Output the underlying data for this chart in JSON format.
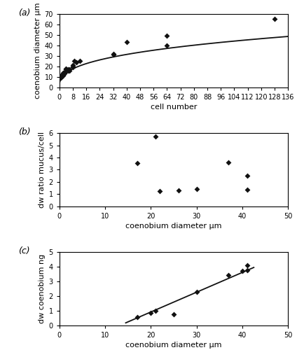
{
  "panel_a": {
    "scatter_x": [
      1,
      1,
      1,
      2,
      2,
      2,
      2,
      3,
      3,
      4,
      4,
      4,
      4,
      5,
      5,
      6,
      6,
      8,
      8,
      8,
      9,
      10,
      12,
      32,
      32,
      40,
      64,
      64,
      128
    ],
    "scatter_y": [
      9,
      10,
      11,
      11,
      12,
      13,
      14,
      13,
      14,
      15,
      16,
      17,
      18,
      16,
      17,
      16,
      17,
      19,
      20,
      21,
      25,
      24,
      25,
      31,
      32,
      43,
      40,
      49,
      65
    ],
    "curve_a": 8.5,
    "curve_b": 0.355,
    "xlabel": "cell number",
    "ylabel": "coenobium diameter μm",
    "xlim": [
      0,
      136
    ],
    "ylim": [
      0,
      70
    ],
    "xticks": [
      0,
      8,
      16,
      24,
      32,
      40,
      48,
      56,
      64,
      72,
      80,
      88,
      96,
      104,
      112,
      120,
      128,
      136
    ],
    "yticks": [
      0,
      10,
      20,
      30,
      40,
      50,
      60,
      70
    ],
    "label": "(a)"
  },
  "panel_b": {
    "scatter_x": [
      17,
      21,
      22,
      26,
      30,
      37,
      41,
      41
    ],
    "scatter_y": [
      3.55,
      5.7,
      1.25,
      1.3,
      1.45,
      3.6,
      2.5,
      1.35
    ],
    "xlabel": "coenobium diameter μm",
    "ylabel": "dw ratio mucus/cell",
    "xlim": [
      0,
      50
    ],
    "ylim": [
      0,
      6
    ],
    "xticks": [
      0,
      10,
      20,
      30,
      40,
      50
    ],
    "yticks": [
      0,
      1,
      2,
      3,
      4,
      5,
      6
    ],
    "label": "(b)"
  },
  "panel_c": {
    "scatter_x": [
      17,
      20,
      21,
      25,
      30,
      37,
      40,
      41,
      41
    ],
    "scatter_y": [
      0.55,
      0.85,
      1.0,
      0.75,
      2.3,
      3.45,
      3.7,
      4.1,
      3.75
    ],
    "line_x": [
      14.5,
      42.5
    ],
    "line_y": [
      0.18,
      3.95
    ],
    "xlabel": "coenobium diameter μm",
    "ylabel": "dw coenobium ng",
    "xlim": [
      0,
      50
    ],
    "ylim": [
      0,
      5
    ],
    "xticks": [
      0,
      10,
      20,
      30,
      40,
      50
    ],
    "yticks": [
      0,
      1,
      2,
      3,
      4,
      5
    ],
    "label": "(c)"
  },
  "marker": "D",
  "marker_size": 4,
  "marker_color": "#111111",
  "line_color": "#111111",
  "bg_color": "#ffffff",
  "plot_bg_color": "#ffffff"
}
